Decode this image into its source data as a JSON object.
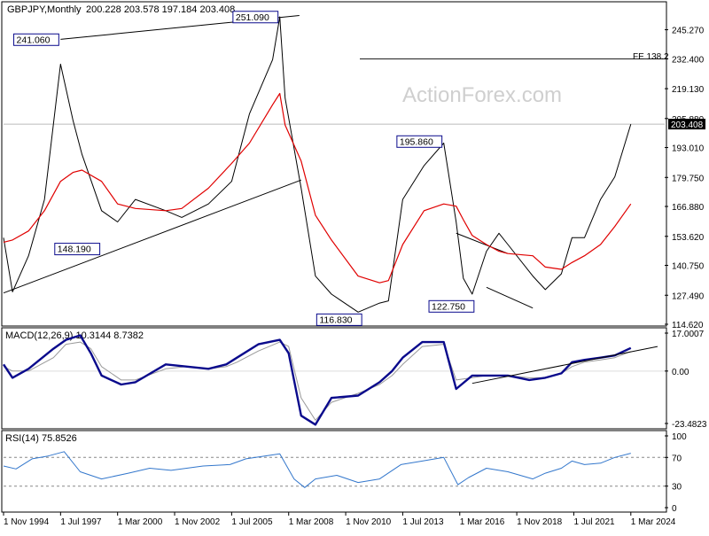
{
  "header": {
    "symbol_label": "GBPJPY,Monthly",
    "ohlc_label": "200.228 203.578 197.184 203.408"
  },
  "watermark": "ActionForex.com",
  "colors": {
    "price": "#000000",
    "ma": "#e00000",
    "macd": "#0a0a8c",
    "signal": "#999999",
    "rsi": "#3377cc",
    "label_border": "#0a0a8c",
    "current_tag_bg": "#000000"
  },
  "chart_data": [
    {
      "type": "line",
      "title": "",
      "xlabel": "",
      "ylabel": "",
      "x": [
        "1994-11",
        "1995-04",
        "1996-01",
        "1996-10",
        "1997-07",
        "1998-02",
        "1998-07",
        "1999-06",
        "2000-03",
        "2001-01",
        "2002-06",
        "2003-03",
        "2004-06",
        "2005-07",
        "2006-05",
        "2007-06",
        "2007-10",
        "2008-01",
        "2008-10",
        "2009-06",
        "2010-03",
        "2011-06",
        "2012-06",
        "2012-11",
        "2013-07",
        "2014-07",
        "2015-06",
        "2016-01",
        "2016-05",
        "2016-10",
        "2017-06",
        "2018-01",
        "2018-06",
        "2019-08",
        "2020-03",
        "2020-12",
        "2021-06",
        "2022-01",
        "2022-10",
        "2023-06",
        "2024-03"
      ],
      "series": [
        {
          "values": [
            153,
            129,
            145,
            170,
            230,
            205,
            190,
            165,
            160,
            170,
            165,
            162,
            168,
            178,
            208,
            232,
            251,
            215,
            175,
            136,
            128,
            120,
            124,
            125,
            170,
            185,
            195,
            160,
            135,
            128,
            147,
            155,
            150,
            136,
            130,
            137,
            153,
            153,
            170,
            180,
            203.408
          ]
        },
        {
          "values": [
            151,
            152,
            156,
            165,
            178,
            182,
            183,
            178,
            168,
            166,
            165,
            166,
            175,
            186,
            195,
            212,
            217,
            203,
            187,
            163,
            152,
            136,
            133,
            134,
            150,
            165,
            168,
            167,
            161,
            154,
            150,
            147,
            146,
            145,
            140,
            139,
            142,
            145,
            150,
            158,
            168
          ]
        }
      ],
      "ylim": [
        114.62,
        250.6
      ],
      "y_ticks": [
        "245.270",
        "232.400",
        "219.130",
        "205.880",
        "193.010",
        "179.750",
        "166.880",
        "153.620",
        "140.750",
        "127.490",
        "114.620"
      ],
      "x_ticks": [
        "1 Nov 1994",
        "1 Jul 1997",
        "1 Mar 2000",
        "1 Nov 2002",
        "1 Jul 2005",
        "1 Mar 2008",
        "1 Nov 2010",
        "1 Jul 2013",
        "1 Mar 2016",
        "1 Nov 2018",
        "1 Jul 2021",
        "1 Mar 2024"
      ],
      "current_value": "203.408",
      "fe_label": "FE 138.2",
      "fe_value": 232.3,
      "annotations": [
        {
          "label": "241.060",
          "x": "1997-07",
          "y": 241.06
        },
        {
          "label": "251.090",
          "x": "2007-10",
          "y": 251.09
        },
        {
          "label": "148.190",
          "x": "1999-06",
          "y": 148.19
        },
        {
          "label": "116.830",
          "x": "2011-06",
          "y": 116.83
        },
        {
          "label": "195.860",
          "x": "2015-06",
          "y": 195.86
        },
        {
          "label": "122.750",
          "x": "2016-10",
          "y": 122.75
        }
      ],
      "trendlines": [
        {
          "x": [
            "1997-07",
            "2008-09"
          ],
          "y": [
            241.0,
            251.6
          ]
        },
        {
          "x": [
            "1994-11",
            "2008-10"
          ],
          "y": [
            128.5,
            178.6
          ]
        },
        {
          "x": [
            "2016-01",
            "2018-06"
          ],
          "y": [
            155.0,
            146.0
          ]
        },
        {
          "x": [
            "2017-06",
            "2019-08"
          ],
          "y": [
            131.0,
            121.8
          ]
        }
      ],
      "grid": false,
      "legend": "none"
    },
    {
      "type": "line",
      "title": "MACD(12,26,9) 10.3144 8.7382",
      "ylim": [
        -23.4823,
        17.0007
      ],
      "y_ticks": [
        "17.0007",
        "0.00",
        "-23.4823"
      ],
      "x": [
        "1994-11",
        "1995-04",
        "1996-01",
        "1997-03",
        "1997-10",
        "1998-06",
        "1998-12",
        "1999-06",
        "2000-05",
        "2001-01",
        "2002-06",
        "2003-06",
        "2004-06",
        "2005-04",
        "2005-10",
        "2006-10",
        "2007-10",
        "2008-03",
        "2008-10",
        "2009-06",
        "2010-03",
        "2011-06",
        "2012-06",
        "2013-01",
        "2013-07",
        "2014-06",
        "2015-06",
        "2016-01",
        "2016-10",
        "2017-06",
        "2018-06",
        "2019-06",
        "2020-03",
        "2020-12",
        "2021-06",
        "2022-01",
        "2022-10",
        "2023-06",
        "2024-03"
      ],
      "series": [
        {
          "name": "MACD",
          "values": [
            3,
            -3,
            1,
            10,
            14,
            16,
            8,
            -2,
            -6,
            -5,
            3,
            2,
            1,
            3,
            6,
            12,
            14,
            8,
            -20,
            -24,
            -12,
            -11,
            -5,
            0,
            6,
            13,
            13,
            -8,
            -2,
            -2,
            -2,
            -4,
            -3,
            -1,
            4,
            5,
            6,
            7,
            10.3144
          ]
        },
        {
          "values": [
            2,
            0,
            0,
            6,
            12,
            13,
            10,
            2,
            -4,
            -4,
            1,
            2,
            1,
            2,
            4,
            9,
            13,
            11,
            -12,
            -22,
            -14,
            -10,
            -6,
            -2,
            3,
            11,
            12,
            -4,
            -3,
            -2,
            -2,
            -3,
            -3,
            -1,
            2,
            4,
            5,
            6,
            8.7382
          ]
        }
      ],
      "trendline": {
        "x": [
          "2016-10",
          "2025-06"
        ],
        "y": [
          -5.5,
          11.0
        ]
      }
    },
    {
      "type": "line",
      "title": "RSI(14) 75.8526",
      "ylim": [
        0,
        100
      ],
      "y_ticks": [
        "100",
        "70",
        "30",
        "0"
      ],
      "x": [
        "1994-11",
        "1995-06",
        "1996-03",
        "1996-12",
        "1997-09",
        "1998-06",
        "1999-06",
        "2000-09",
        "2001-09",
        "2002-09",
        "2004-03",
        "2005-06",
        "2006-03",
        "2007-10",
        "2008-06",
        "2008-12",
        "2009-06",
        "2010-06",
        "2011-06",
        "2012-06",
        "2013-06",
        "2014-06",
        "2015-06",
        "2016-02",
        "2016-08",
        "2017-06",
        "2018-06",
        "2019-08",
        "2020-03",
        "2020-12",
        "2021-06",
        "2022-01",
        "2022-10",
        "2023-06",
        "2024-03"
      ],
      "series": [
        {
          "name": "RSI",
          "values": [
            58,
            54,
            68,
            72,
            78,
            50,
            40,
            48,
            55,
            52,
            58,
            60,
            68,
            75,
            40,
            28,
            40,
            45,
            35,
            40,
            60,
            65,
            70,
            32,
            42,
            55,
            50,
            40,
            48,
            55,
            65,
            60,
            62,
            70,
            75.8526
          ]
        }
      ],
      "levels": [
        70,
        30
      ]
    }
  ]
}
